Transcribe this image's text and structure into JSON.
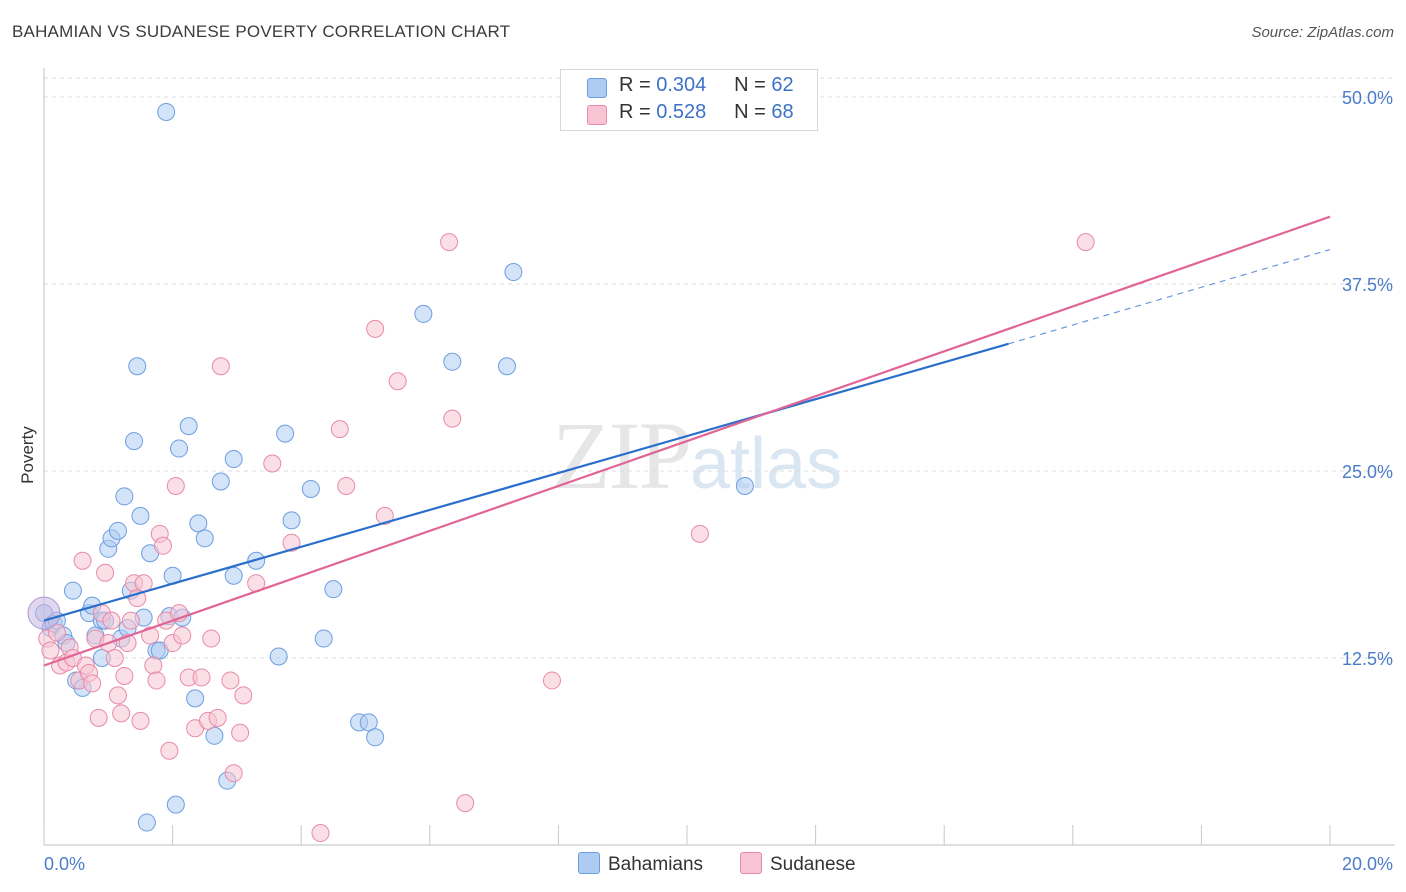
{
  "header": {
    "title": "BAHAMIAN VS SUDANESE POVERTY CORRELATION CHART",
    "source": "Source: ZipAtlas.com"
  },
  "watermark": {
    "zip": "ZIP",
    "atlas": "atlas"
  },
  "legend": {
    "rows": [
      {
        "r_label": "R =",
        "r_value": "0.304",
        "n_label": "N =",
        "n_value": "62",
        "color": "#aeccf2",
        "border": "#6d9ee0"
      },
      {
        "r_label": "R =",
        "r_value": "0.528",
        "n_label": "N =",
        "n_value": "68",
        "color": "#f8c4d4",
        "border": "#e88aa8"
      }
    ]
  },
  "bottom_legend": {
    "items": [
      {
        "label": "Bahamians",
        "color": "#aeccf2",
        "border": "#6d9ee0"
      },
      {
        "label": "Sudanese",
        "color": "#f8c4d4",
        "border": "#e88aa8"
      }
    ]
  },
  "chart_data": {
    "type": "scatter",
    "title": "BAHAMIAN VS SUDANESE POVERTY CORRELATION CHART",
    "xlabel": "",
    "ylabel": "Poverty",
    "xlim": [
      0,
      20
    ],
    "ylim": [
      0,
      50
    ],
    "x_tick_labels": [
      "0.0%",
      "20.0%"
    ],
    "y_ticks": [
      12.5,
      25.0,
      37.5,
      50.0
    ],
    "y_tick_labels": [
      "12.5%",
      "25.0%",
      "37.5%",
      "50.0%"
    ],
    "grid": true,
    "legend_position": "top-center",
    "series": [
      {
        "name": "Bahamians",
        "color": "#6d9ee0",
        "fill": "#aeccf2",
        "line_color": "#2b6fcc",
        "trend": {
          "x0": 0,
          "y0": 15.0,
          "x1": 15.0,
          "y1": 33.5,
          "dash_to_x": 20,
          "dash_to_y": 39.8
        },
        "points": [
          [
            0.0,
            15.5
          ],
          [
            0.1,
            14.5
          ],
          [
            0.15,
            14.8
          ],
          [
            0.2,
            15.0
          ],
          [
            0.3,
            14.0
          ],
          [
            0.35,
            13.5
          ],
          [
            0.45,
            17.0
          ],
          [
            0.5,
            11.0
          ],
          [
            0.6,
            10.5
          ],
          [
            0.7,
            15.5
          ],
          [
            0.75,
            16.0
          ],
          [
            0.8,
            14.0
          ],
          [
            0.9,
            15.0
          ],
          [
            0.9,
            12.5
          ],
          [
            0.95,
            15.0
          ],
          [
            1.0,
            19.8
          ],
          [
            1.05,
            20.5
          ],
          [
            1.15,
            21.0
          ],
          [
            1.2,
            13.8
          ],
          [
            1.25,
            23.3
          ],
          [
            1.3,
            14.5
          ],
          [
            1.35,
            17.0
          ],
          [
            1.4,
            27.0
          ],
          [
            1.45,
            32.0
          ],
          [
            1.5,
            22.0
          ],
          [
            1.55,
            15.2
          ],
          [
            1.6,
            1.5
          ],
          [
            1.65,
            19.5
          ],
          [
            1.75,
            13.0
          ],
          [
            1.8,
            13.0
          ],
          [
            1.9,
            49.0
          ],
          [
            1.95,
            15.3
          ],
          [
            2.0,
            18.0
          ],
          [
            2.05,
            2.7
          ],
          [
            2.1,
            26.5
          ],
          [
            2.15,
            15.2
          ],
          [
            2.25,
            28.0
          ],
          [
            2.35,
            9.8
          ],
          [
            2.4,
            21.5
          ],
          [
            2.5,
            20.5
          ],
          [
            2.65,
            7.3
          ],
          [
            2.75,
            24.3
          ],
          [
            2.85,
            4.3
          ],
          [
            2.95,
            25.8
          ],
          [
            2.95,
            18.0
          ],
          [
            3.3,
            19.0
          ],
          [
            3.65,
            12.6
          ],
          [
            3.75,
            27.5
          ],
          [
            3.85,
            21.7
          ],
          [
            4.15,
            23.8
          ],
          [
            4.35,
            13.8
          ],
          [
            4.5,
            17.1
          ],
          [
            4.9,
            8.2
          ],
          [
            5.05,
            8.2
          ],
          [
            5.15,
            7.2
          ],
          [
            5.9,
            35.5
          ],
          [
            6.35,
            32.3
          ],
          [
            7.2,
            32.0
          ],
          [
            7.3,
            38.3
          ],
          [
            10.9,
            24.0
          ]
        ]
      },
      {
        "name": "Sudanese",
        "color": "#e88aa8",
        "fill": "#f8c4d4",
        "line_color": "#e06596",
        "trend": {
          "x0": 0,
          "y0": 12.0,
          "x1": 20,
          "y1": 42.0
        },
        "points": [
          [
            0.05,
            13.8
          ],
          [
            0.1,
            13.0
          ],
          [
            0.2,
            14.2
          ],
          [
            0.25,
            12.0
          ],
          [
            0.35,
            12.2
          ],
          [
            0.4,
            13.2
          ],
          [
            0.45,
            12.5
          ],
          [
            0.55,
            11.0
          ],
          [
            0.6,
            19.0
          ],
          [
            0.65,
            12.0
          ],
          [
            0.7,
            11.5
          ],
          [
            0.75,
            10.8
          ],
          [
            0.8,
            13.8
          ],
          [
            0.85,
            8.5
          ],
          [
            0.9,
            15.5
          ],
          [
            0.95,
            18.2
          ],
          [
            1.0,
            13.5
          ],
          [
            1.05,
            15.0
          ],
          [
            1.1,
            12.5
          ],
          [
            1.15,
            10.0
          ],
          [
            1.2,
            8.8
          ],
          [
            1.25,
            11.3
          ],
          [
            1.3,
            13.5
          ],
          [
            1.35,
            15.0
          ],
          [
            1.4,
            17.5
          ],
          [
            1.45,
            16.5
          ],
          [
            1.5,
            8.3
          ],
          [
            1.55,
            17.5
          ],
          [
            1.65,
            14.0
          ],
          [
            1.7,
            12.0
          ],
          [
            1.75,
            11.0
          ],
          [
            1.8,
            20.8
          ],
          [
            1.85,
            20.0
          ],
          [
            1.9,
            15.0
          ],
          [
            1.95,
            6.3
          ],
          [
            2.0,
            13.5
          ],
          [
            2.05,
            24.0
          ],
          [
            2.1,
            15.5
          ],
          [
            2.15,
            14.0
          ],
          [
            2.25,
            11.2
          ],
          [
            2.35,
            7.8
          ],
          [
            2.45,
            11.2
          ],
          [
            2.55,
            8.3
          ],
          [
            2.6,
            13.8
          ],
          [
            2.7,
            8.5
          ],
          [
            2.75,
            32.0
          ],
          [
            2.9,
            11.0
          ],
          [
            2.95,
            4.8
          ],
          [
            3.05,
            7.5
          ],
          [
            3.1,
            10.0
          ],
          [
            3.3,
            17.5
          ],
          [
            3.55,
            25.5
          ],
          [
            3.85,
            20.2
          ],
          [
            4.3,
            0.8
          ],
          [
            4.6,
            27.8
          ],
          [
            4.7,
            24.0
          ],
          [
            5.15,
            34.5
          ],
          [
            5.3,
            22.0
          ],
          [
            5.5,
            31.0
          ],
          [
            6.3,
            40.3
          ],
          [
            6.35,
            28.5
          ],
          [
            6.55,
            2.8
          ],
          [
            7.9,
            11.0
          ],
          [
            10.2,
            20.8
          ],
          [
            16.2,
            40.3
          ]
        ]
      }
    ]
  }
}
